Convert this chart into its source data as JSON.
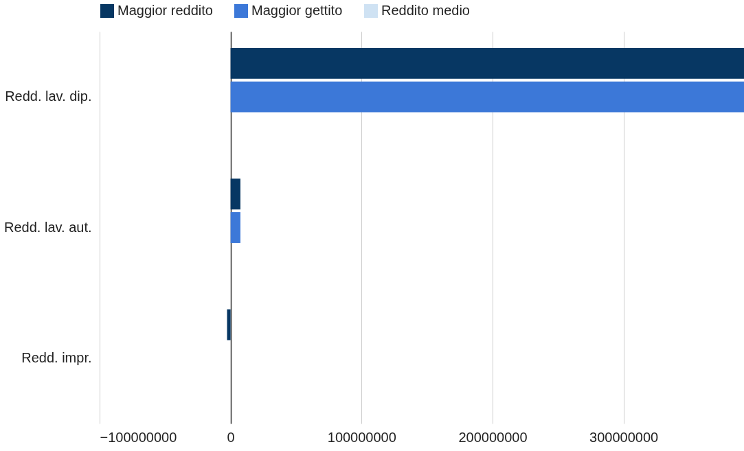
{
  "chart_data": {
    "type": "bar",
    "orientation": "horizontal",
    "categories": [
      "Redd. lav. dip.",
      "Redd. lav. aut.",
      "Redd. impr."
    ],
    "series": [
      {
        "name": "Maggior reddito",
        "color": "#073763",
        "values": [
          392000000,
          7500000,
          -2700000
        ]
      },
      {
        "name": "Maggior gettito",
        "color": "#3c78d8",
        "values": [
          392000000,
          7500000,
          null
        ]
      },
      {
        "name": "Reddito medio",
        "color": "#cfe2f3",
        "values": [
          null,
          null,
          null
        ]
      }
    ],
    "xlim": [
      -100000000,
      392000000
    ],
    "xticks": [
      -100000000,
      0,
      100000000,
      200000000,
      300000000
    ],
    "grid": "x",
    "legend": "top"
  }
}
